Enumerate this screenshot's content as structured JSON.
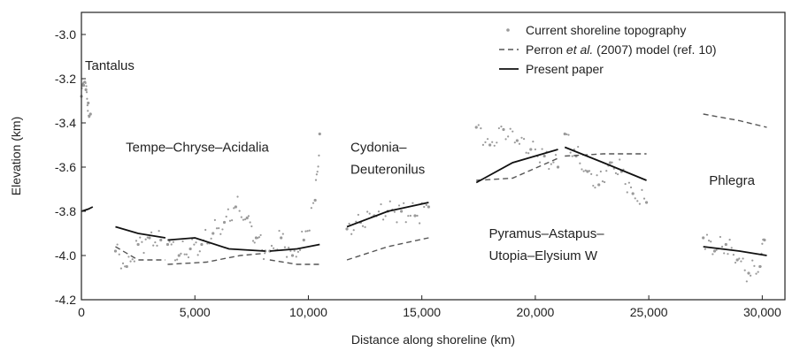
{
  "chart_data": {
    "type": "scatter",
    "xlabel": "Distance along shoreline (km)",
    "ylabel": "Elevation (km)",
    "xlim": [
      0,
      31000
    ],
    "ylim": [
      -4.2,
      -2.9
    ],
    "x_ticks": [
      0,
      5000,
      10000,
      15000,
      20000,
      25000,
      30000
    ],
    "x_tick_labels": [
      "0",
      "5,000",
      "10,000",
      "15,000",
      "20,000",
      "25,000",
      "30,000"
    ],
    "y_ticks": [
      -3.0,
      -3.2,
      -3.4,
      -3.6,
      -3.8,
      -4.0,
      -4.2
    ],
    "y_tick_labels": [
      "-3.0",
      "-3.2",
      "-3.4",
      "-3.6",
      "-3.8",
      "-4.0",
      "-4.2"
    ],
    "grid": false,
    "legend_position": "top-right",
    "legend": [
      {
        "label": "Current shoreline topography",
        "style": "dots"
      },
      {
        "label_parts": [
          "Perron ",
          "et al.",
          " (2007) model (ref. 10)"
        ],
        "style": "dashed"
      },
      {
        "label": "Present paper",
        "style": "solid"
      }
    ],
    "annotations": [
      {
        "text": "Tantalus",
        "x": 0,
        "y": -3.16
      },
      {
        "text": "Tempe–Chryse–Acidalia",
        "x": 1800,
        "y": -3.53
      },
      {
        "text": "Cydonia–",
        "x": 11700,
        "y": -3.53
      },
      {
        "text": "Deuteronilus",
        "x": 11700,
        "y": -3.63
      },
      {
        "text": "Pyramus–Astapus–",
        "x": 17800,
        "y": -3.92
      },
      {
        "text": "Utopia–Elysium W",
        "x": 17800,
        "y": -4.02
      },
      {
        "text": "Phlegra",
        "x": 27500,
        "y": -3.68
      }
    ],
    "series": [
      {
        "name": "Current shoreline topography",
        "style": "dots",
        "color": "#9a9a9a",
        "segments": [
          {
            "x": [
              0,
              100,
              200,
              300,
              400
            ],
            "y": [
              -3.28,
              -3.23,
              -3.25,
              -3.31,
              -3.36
            ]
          },
          {
            "x": [
              1500,
              2000,
              2500,
              3000,
              3500
            ],
            "y": [
              -3.98,
              -4.05,
              -3.95,
              -3.92,
              -3.93
            ]
          },
          {
            "x": [
              3800,
              4300,
              4800,
              5300,
              5800,
              6300,
              6800,
              7300,
              7700,
              8100
            ],
            "y": [
              -3.95,
              -4.0,
              -3.97,
              -3.95,
              -3.9,
              -3.85,
              -3.78,
              -3.83,
              -3.92,
              -3.98
            ]
          },
          {
            "x": [
              8300,
              8800,
              9300,
              9800,
              10300,
              10500
            ],
            "y": [
              -3.98,
              -3.92,
              -4.0,
              -3.93,
              -3.75,
              -3.45
            ]
          },
          {
            "x": [
              11700,
              12300,
              12900,
              13500,
              14100,
              14700,
              15300
            ],
            "y": [
              -3.88,
              -3.85,
              -3.82,
              -3.8,
              -3.8,
              -3.82,
              -3.78
            ]
          },
          {
            "x": [
              17400,
              18000,
              18600,
              19200,
              19800,
              20400,
              21000
            ],
            "y": [
              -3.42,
              -3.5,
              -3.43,
              -3.48,
              -3.52,
              -3.55,
              -3.6
            ]
          },
          {
            "x": [
              21300,
              21800,
              22300,
              22800,
              23300,
              23800,
              24300,
              24900
            ],
            "y": [
              -3.45,
              -3.55,
              -3.62,
              -3.68,
              -3.58,
              -3.62,
              -3.72,
              -3.76
            ]
          },
          {
            "x": [
              27400,
              27900,
              28400,
              28900,
              29400,
              29900,
              30100
            ],
            "y": [
              -3.92,
              -3.98,
              -3.95,
              -4.02,
              -4.08,
              -4.05,
              -3.93
            ]
          }
        ]
      },
      {
        "name": "Perron et al. (2007) model (ref. 10)",
        "style": "dashed",
        "color": "#555555",
        "segments": [
          {
            "x": [
              1500,
              2500,
              3700
            ],
            "y": [
              -3.96,
              -4.02,
              -4.02
            ]
          },
          {
            "x": [
              3800,
              5500,
              7000,
              8100
            ],
            "y": [
              -4.04,
              -4.03,
              -4.0,
              -3.99
            ]
          },
          {
            "x": [
              8300,
              9500,
              10500
            ],
            "y": [
              -4.02,
              -4.04,
              -4.04
            ]
          },
          {
            "x": [
              11700,
              13500,
              15300
            ],
            "y": [
              -4.02,
              -3.96,
              -3.92
            ]
          },
          {
            "x": [
              17400,
              19000,
              21000
            ],
            "y": [
              -3.66,
              -3.65,
              -3.56
            ]
          },
          {
            "x": [
              21300,
              23000,
              24900
            ],
            "y": [
              -3.55,
              -3.54,
              -3.54
            ]
          },
          {
            "x": [
              27400,
              29000,
              30200
            ],
            "y": [
              -3.36,
              -3.39,
              -3.42
            ]
          }
        ]
      },
      {
        "name": "Present paper",
        "style": "solid",
        "color": "#111111",
        "segments": [
          {
            "x": [
              0,
              300,
              500
            ],
            "y": [
              -3.8,
              -3.79,
              -3.78
            ]
          },
          {
            "x": [
              1500,
              2500,
              3700
            ],
            "y": [
              -3.87,
              -3.9,
              -3.92
            ]
          },
          {
            "x": [
              3800,
              5000,
              6500,
              8100
            ],
            "y": [
              -3.93,
              -3.92,
              -3.97,
              -3.98
            ]
          },
          {
            "x": [
              8300,
              9500,
              10500
            ],
            "y": [
              -3.98,
              -3.97,
              -3.95
            ]
          },
          {
            "x": [
              11700,
              13500,
              15300
            ],
            "y": [
              -3.87,
              -3.8,
              -3.76
            ]
          },
          {
            "x": [
              17400,
              19000,
              21000
            ],
            "y": [
              -3.67,
              -3.58,
              -3.52
            ]
          },
          {
            "x": [
              21300,
              23000,
              24900
            ],
            "y": [
              -3.51,
              -3.58,
              -3.66
            ]
          },
          {
            "x": [
              27400,
              29000,
              30200
            ],
            "y": [
              -3.96,
              -3.98,
              -4.0
            ]
          }
        ]
      }
    ]
  }
}
